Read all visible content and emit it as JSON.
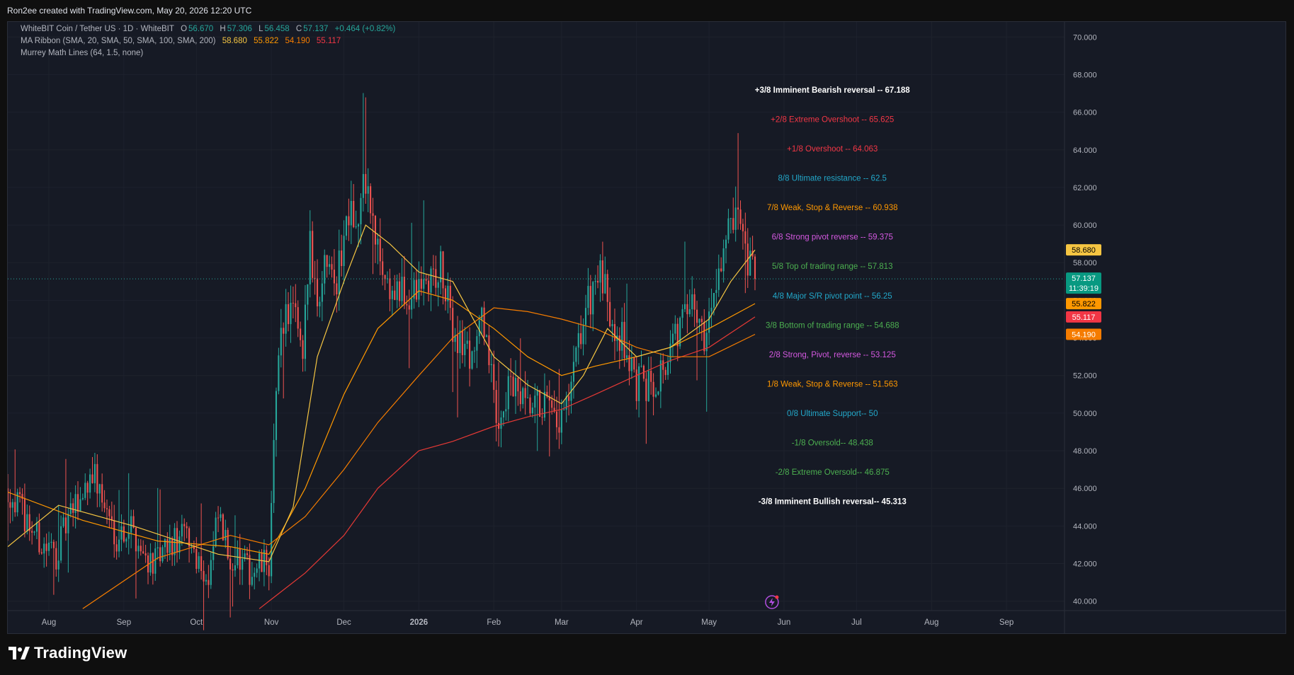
{
  "header": {
    "attribution": "Ron2ee created with TradingView.com, May 20, 2026 12:20 UTC"
  },
  "legend": {
    "symbol": "WhiteBIT Coin / Tether US · 1D · WhiteBIT",
    "o_key": "O",
    "o_val": "56.670",
    "h_key": "H",
    "h_val": "57.306",
    "l_key": "L",
    "l_val": "56.458",
    "c_key": "C",
    "c_val": "57.137",
    "change": "+0.464 (+0.82%)",
    "ma_title": "MA Ribbon (SMA, 20, SMA, 50, SMA, 100, SMA, 200)",
    "ma_vals": [
      "58.680",
      "55.822",
      "54.190",
      "55.117"
    ],
    "murrey_title": "Murrey Math Lines (64, 1.5, none)"
  },
  "footer": {
    "brand": "TradingView"
  },
  "chart_data": {
    "type": "candlestick",
    "symbol": "WhiteBIT Coin / Tether US",
    "interval": "1D",
    "exchange": "WhiteBIT",
    "ylim": [
      39.5,
      70.8
    ],
    "x_range": [
      "2025-07-15",
      "2026-09-25"
    ],
    "yticks": [
      "70.000",
      "68.000",
      "66.000",
      "64.000",
      "62.000",
      "60.000",
      "58.000",
      "56.000",
      "54.000",
      "52.000",
      "50.000",
      "48.000",
      "46.000",
      "44.000",
      "42.000",
      "40.000"
    ],
    "xticks": [
      {
        "label": "Aug",
        "date": "2025-08-01"
      },
      {
        "label": "Sep",
        "date": "2025-09-01"
      },
      {
        "label": "Oct",
        "date": "2025-10-01"
      },
      {
        "label": "Nov",
        "date": "2025-11-01"
      },
      {
        "label": "Dec",
        "date": "2025-12-01"
      },
      {
        "label": "2026",
        "date": "2026-01-01",
        "bold": true
      },
      {
        "label": "Feb",
        "date": "2026-02-01"
      },
      {
        "label": "Mar",
        "date": "2026-03-01"
      },
      {
        "label": "Apr",
        "date": "2026-04-01"
      },
      {
        "label": "May",
        "date": "2026-05-01"
      },
      {
        "label": "Jun",
        "date": "2026-06-01"
      },
      {
        "label": "Jul",
        "date": "2026-07-01"
      },
      {
        "label": "Aug",
        "date": "2026-08-01"
      },
      {
        "label": "Sep",
        "date": "2026-09-01"
      }
    ],
    "price_path": [
      [
        "2025-07-15",
        46.0
      ],
      [
        "2025-07-22",
        44.5
      ],
      [
        "2025-07-29",
        43.0
      ],
      [
        "2025-08-04",
        42.5
      ],
      [
        "2025-08-08",
        44.0
      ],
      [
        "2025-08-14",
        45.5
      ],
      [
        "2025-08-19",
        47.0
      ],
      [
        "2025-08-24",
        45.0
      ],
      [
        "2025-08-29",
        43.5
      ],
      [
        "2025-09-04",
        44.0
      ],
      [
        "2025-09-09",
        42.5
      ],
      [
        "2025-09-14",
        42.0
      ],
      [
        "2025-09-21",
        43.0
      ],
      [
        "2025-09-27",
        43.5
      ],
      [
        "2025-10-01",
        42.5
      ],
      [
        "2025-10-06",
        41.0
      ],
      [
        "2025-10-10",
        44.5
      ],
      [
        "2025-10-14",
        42.5
      ],
      [
        "2025-10-19",
        42.0
      ],
      [
        "2025-10-24",
        41.5
      ],
      [
        "2025-10-29",
        42.0
      ],
      [
        "2025-10-31",
        42.0
      ],
      [
        "2025-11-02",
        48.0
      ],
      [
        "2025-11-05",
        55.0
      ],
      [
        "2025-11-10",
        55.5
      ],
      [
        "2025-11-14",
        52.5
      ],
      [
        "2025-11-17",
        59.5
      ],
      [
        "2025-11-20",
        56.0
      ],
      [
        "2025-11-25",
        59.0
      ],
      [
        "2025-11-28",
        57.0
      ],
      [
        "2025-12-04",
        62.0
      ],
      [
        "2025-12-06",
        59.5
      ],
      [
        "2025-12-10",
        62.5
      ],
      [
        "2025-12-14",
        59.0
      ],
      [
        "2025-12-20",
        56.5
      ],
      [
        "2025-12-28",
        56.0
      ],
      [
        "2026-01-05",
        57.0
      ],
      [
        "2026-01-10",
        57.5
      ],
      [
        "2026-01-15",
        54.5
      ],
      [
        "2026-01-22",
        53.0
      ],
      [
        "2026-01-28",
        55.0
      ],
      [
        "2026-02-02",
        49.5
      ],
      [
        "2026-02-08",
        51.5
      ],
      [
        "2026-02-15",
        50.0
      ],
      [
        "2026-02-22",
        50.5
      ],
      [
        "2026-02-27",
        49.0
      ],
      [
        "2026-03-04",
        50.5
      ],
      [
        "2026-03-10",
        55.0
      ],
      [
        "2026-03-16",
        57.5
      ],
      [
        "2026-03-21",
        55.5
      ],
      [
        "2026-03-26",
        54.0
      ],
      [
        "2026-04-01",
        51.5
      ],
      [
        "2026-04-07",
        51.5
      ],
      [
        "2026-04-14",
        53.0
      ],
      [
        "2026-04-20",
        55.0
      ],
      [
        "2026-04-25",
        55.5
      ],
      [
        "2026-04-30",
        54.0
      ],
      [
        "2026-05-04",
        57.5
      ],
      [
        "2026-05-09",
        59.5
      ],
      [
        "2026-05-13",
        60.0
      ],
      [
        "2026-05-16",
        58.0
      ],
      [
        "2026-05-20",
        57.137
      ]
    ],
    "sma_20": [
      [
        "2025-07-15",
        42.9
      ],
      [
        "2025-08-05",
        45.1
      ],
      [
        "2025-09-05",
        44.0
      ],
      [
        "2025-10-10",
        42.5
      ],
      [
        "2025-10-31",
        42.1
      ],
      [
        "2025-11-10",
        45.0
      ],
      [
        "2025-11-20",
        53.0
      ],
      [
        "2025-12-01",
        57.0
      ],
      [
        "2025-12-10",
        60.0
      ],
      [
        "2025-12-20",
        59.0
      ],
      [
        "2026-01-01",
        57.5
      ],
      [
        "2026-01-15",
        57.0
      ],
      [
        "2026-02-01",
        53.0
      ],
      [
        "2026-02-15",
        51.5
      ],
      [
        "2026-03-01",
        50.5
      ],
      [
        "2026-03-10",
        52.0
      ],
      [
        "2026-03-20",
        54.5
      ],
      [
        "2026-04-01",
        53.0
      ],
      [
        "2026-04-15",
        53.5
      ],
      [
        "2026-05-01",
        55.0
      ],
      [
        "2026-05-10",
        57.0
      ],
      [
        "2026-05-20",
        58.68
      ]
    ],
    "sma_50": [
      [
        "2025-07-15",
        45.8
      ],
      [
        "2025-08-15",
        44.3
      ],
      [
        "2025-09-15",
        43.2
      ],
      [
        "2025-10-15",
        42.9
      ],
      [
        "2025-10-31",
        42.5
      ],
      [
        "2025-11-15",
        46.0
      ],
      [
        "2025-12-01",
        51.0
      ],
      [
        "2025-12-15",
        54.5
      ],
      [
        "2026-01-01",
        56.5
      ],
      [
        "2026-01-15",
        56.0
      ],
      [
        "2026-02-01",
        54.5
      ],
      [
        "2026-02-15",
        53.0
      ],
      [
        "2026-03-01",
        52.0
      ],
      [
        "2026-03-15",
        52.5
      ],
      [
        "2026-04-01",
        53.0
      ],
      [
        "2026-04-15",
        53.5
      ],
      [
        "2026-05-01",
        54.5
      ],
      [
        "2026-05-20",
        55.822
      ]
    ],
    "sma_100": [
      [
        "2025-08-15",
        39.6
      ],
      [
        "2025-09-15",
        42.3
      ],
      [
        "2025-10-15",
        43.5
      ],
      [
        "2025-10-31",
        43.0
      ],
      [
        "2025-11-15",
        44.5
      ],
      [
        "2025-12-01",
        47.0
      ],
      [
        "2025-12-15",
        49.5
      ],
      [
        "2026-01-01",
        52.0
      ],
      [
        "2026-01-15",
        54.0
      ],
      [
        "2026-02-01",
        55.6
      ],
      [
        "2026-02-15",
        55.4
      ],
      [
        "2026-03-01",
        55.0
      ],
      [
        "2026-03-15",
        54.5
      ],
      [
        "2026-04-01",
        53.5
      ],
      [
        "2026-04-15",
        53.0
      ],
      [
        "2026-05-01",
        53.0
      ],
      [
        "2026-05-20",
        54.19
      ]
    ],
    "sma_200": [
      [
        "2025-10-27",
        39.6
      ],
      [
        "2025-11-15",
        41.5
      ],
      [
        "2025-12-01",
        43.5
      ],
      [
        "2025-12-15",
        46.0
      ],
      [
        "2026-01-01",
        48.0
      ],
      [
        "2026-01-15",
        48.5
      ],
      [
        "2026-02-01",
        49.3
      ],
      [
        "2026-02-15",
        49.8
      ],
      [
        "2026-03-01",
        50.2
      ],
      [
        "2026-03-15",
        51.0
      ],
      [
        "2026-04-01",
        52.0
      ],
      [
        "2026-04-15",
        52.8
      ],
      [
        "2026-05-01",
        53.5
      ],
      [
        "2026-05-20",
        55.117
      ]
    ],
    "murrey_lines": [
      {
        "label": "+3/8 Imminent Bearish reversal -- ",
        "value": "67.188",
        "color": "#ffffff",
        "bold": true
      },
      {
        "label": "+2/8 Extreme Overshoot -- ",
        "value": "65.625",
        "color": "#f23645"
      },
      {
        "label": "+1/8 Overshoot -- ",
        "value": "64.063",
        "color": "#f23645"
      },
      {
        "label": "8/8 Ultimate resistance -- ",
        "value": "62.5",
        "color": "#22a7c9"
      },
      {
        "label": "7/8 Weak, Stop & Reverse -- ",
        "value": "60.938",
        "color": "#ff9800"
      },
      {
        "label": "6/8 Strong pivot reverse -- ",
        "value": "59.375",
        "color": "#d458e0"
      },
      {
        "label": "5/8 Top of trading range -- ",
        "value": "57.813",
        "color": "#4caf50"
      },
      {
        "label": "4/8 Major S/R pivot point -- ",
        "value": "56.25",
        "color": "#22a7c9"
      },
      {
        "label": "3/8 Bottom of trading range -- ",
        "value": "54.688",
        "color": "#4caf50"
      },
      {
        "label": "2/8 Strong, Pivot, reverse -- ",
        "value": "53.125",
        "color": "#d458e0"
      },
      {
        "label": "1/8 Weak, Stop & Reverse -- ",
        "value": "51.563",
        "color": "#ff9800"
      },
      {
        "label": "0/8 Ultimate Support-- ",
        "value": "50",
        "color": "#22a7c9"
      },
      {
        "label": "-1/8 Oversold-- ",
        "value": "48.438",
        "color": "#4caf50"
      },
      {
        "label": "-2/8 Extreme Oversold-- ",
        "value": "46.875",
        "color": "#4caf50"
      },
      {
        "label": "-3/8 Imminent Bullish reversal-- ",
        "value": "45.313",
        "color": "#ffffff",
        "bold": true
      }
    ],
    "price_badges": [
      {
        "value": 58.68,
        "text": "58.680",
        "bg": "#f5c542",
        "fg": "#000000"
      },
      {
        "value": 57.137,
        "text": "57.137",
        "sub": "11:39:19",
        "bg": "#089981",
        "fg": "#ffffff"
      },
      {
        "value": 55.822,
        "text": "55.822",
        "bg": "#ff9800",
        "fg": "#000000"
      },
      {
        "value": 55.117,
        "text": "55.117",
        "bg": "#f23645",
        "fg": "#ffffff"
      },
      {
        "value": 54.19,
        "text": "54.190",
        "bg": "#f57c00",
        "fg": "#ffffff"
      }
    ],
    "colors": {
      "up": "#26a69a",
      "down": "#ef5350",
      "sma_20": "#f5c542",
      "sma_50": "#ff9800",
      "sma_100": "#f57c00",
      "sma_200": "#e53935",
      "grid": "#1e222d",
      "axis_text": "#b2b5be",
      "last_price_line": "#26a69a"
    },
    "grid": true
  }
}
